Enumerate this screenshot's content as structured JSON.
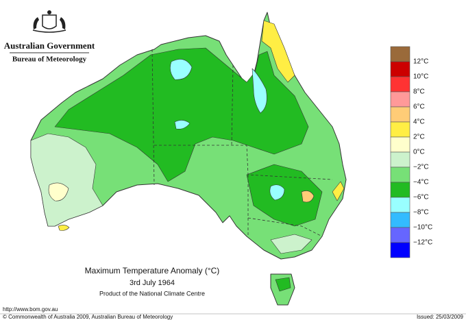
{
  "header": {
    "government": "Australian Government",
    "bureau": "Bureau of Meteorology"
  },
  "map": {
    "title": "Maximum Temperature Anomaly (°C)",
    "date": "3rd July 1964",
    "product": "Product of the National Climate Centre"
  },
  "legend": {
    "labels": [
      "12°C",
      "10°C",
      "8°C",
      "6°C",
      "4°C",
      "2°C",
      "0°C",
      "−2°C",
      "−4°C",
      "−6°C",
      "−8°C",
      "−10°C",
      "−12°C"
    ],
    "colors": [
      "#9a6a3a",
      "#cc0000",
      "#ff3333",
      "#ff9999",
      "#ffcc77",
      "#ffee44",
      "#ffffcc",
      "#ccf2cc",
      "#77e077",
      "#22bb22",
      "#99ffff",
      "#33bbff",
      "#6666ff",
      "#0000ff"
    ]
  },
  "footer": {
    "url": "http://www.bom.gov.au",
    "copyright": "© Commonwealth of Australia 2009, Australian Bureau of Meteorology",
    "issued": "Issued: 25/03/2009"
  }
}
